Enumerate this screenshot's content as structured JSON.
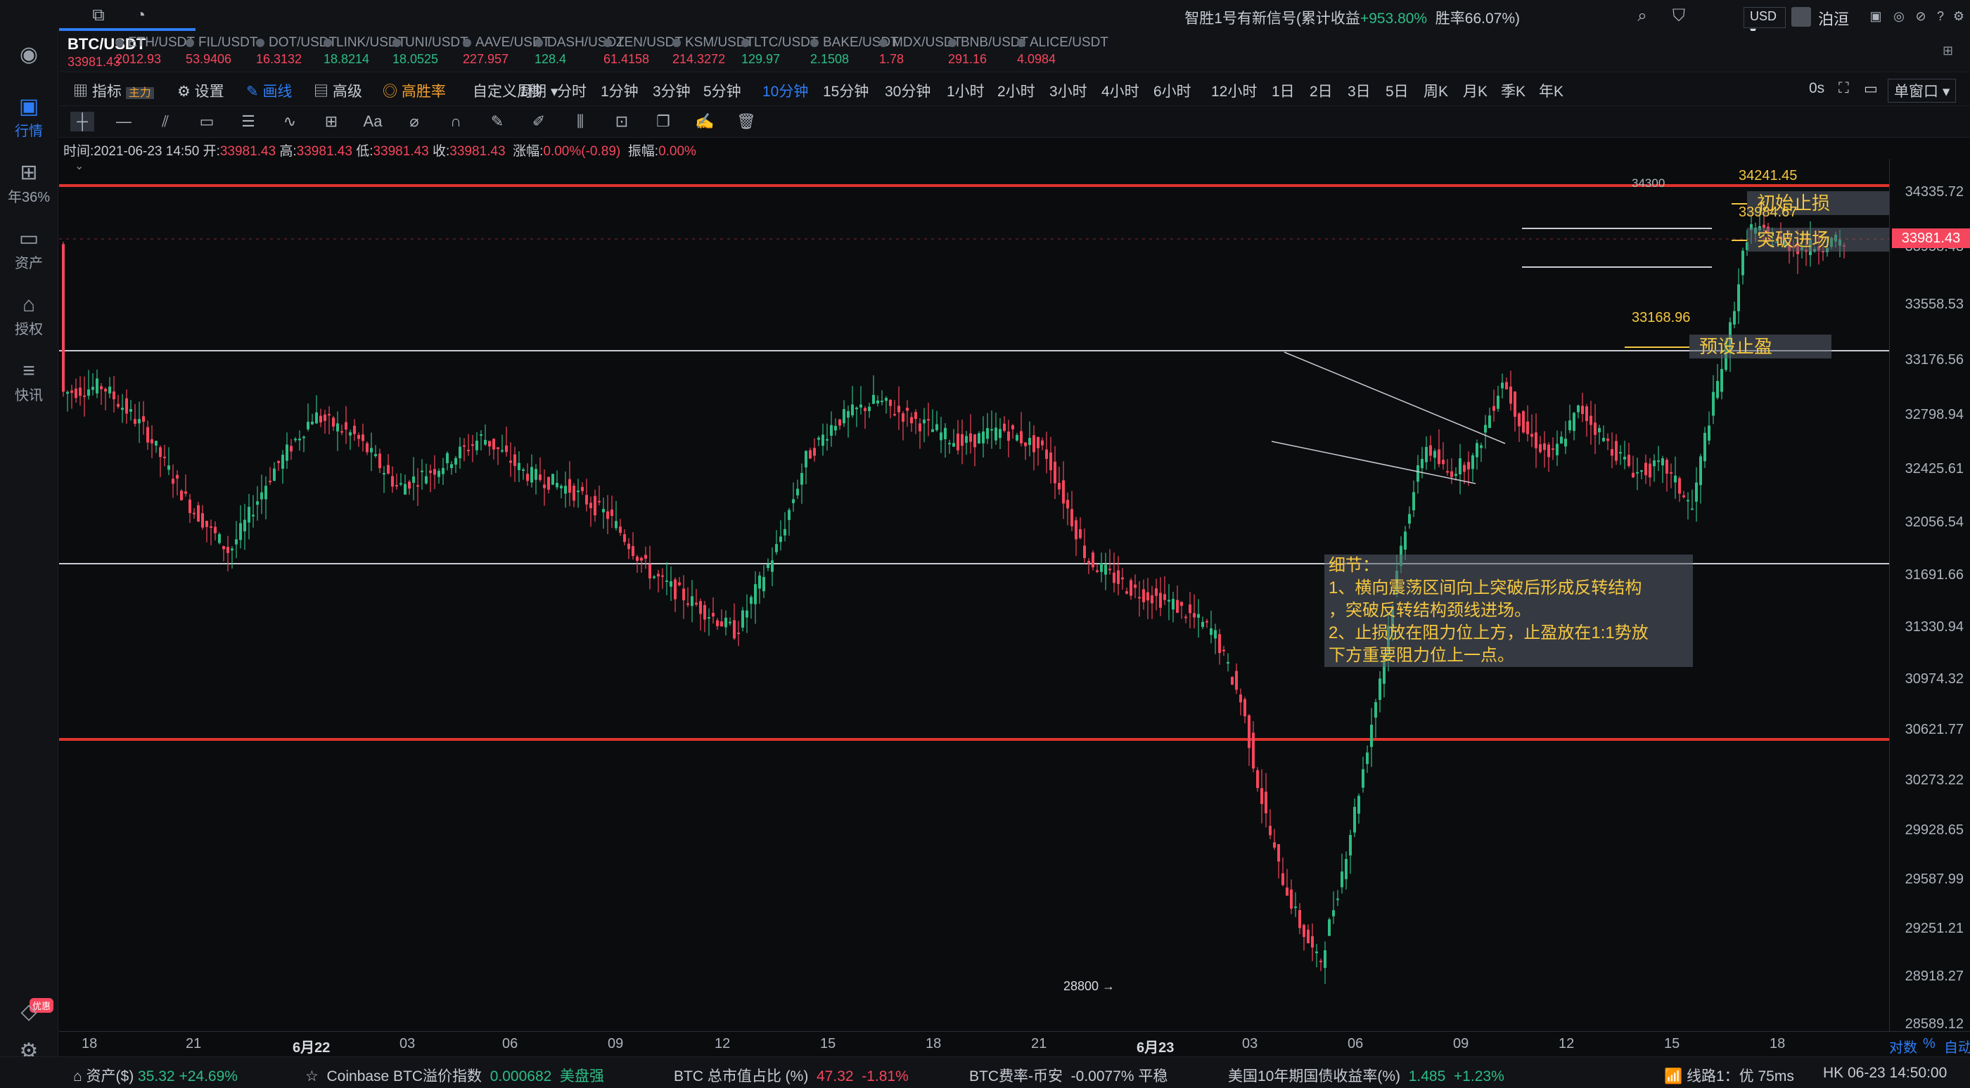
{
  "topbar": {
    "signal_prefix": "智胜1号有新信号(累计收益",
    "signal_gain": "+953.80%",
    "signal_winrate": "胜率66.07%)",
    "currency": "USD",
    "user": "泊洹",
    "icons": [
      "window-icon",
      "bell-icon",
      "search-icon",
      "shirt-icon",
      "layout-icon",
      "circle-icon",
      "ban-icon",
      "help-icon",
      "gear-icon"
    ]
  },
  "sidebar": {
    "items": [
      {
        "label": "行情",
        "icon": "B"
      },
      {
        "label": "年36%",
        "icon": "⊞"
      },
      {
        "label": "资产",
        "icon": "▭"
      },
      {
        "label": "授权",
        "icon": "⌂"
      },
      {
        "label": "快讯",
        "icon": "≡"
      }
    ],
    "badge": "优惠"
  },
  "active_pair": {
    "name": "BTC/USDT",
    "price": "33981.43"
  },
  "pairs": [
    {
      "name": "ETH/USDT",
      "price": "2012.93",
      "dir": "dn"
    },
    {
      "name": "FIL/USDT",
      "price": "53.9406",
      "dir": "dn"
    },
    {
      "name": "DOT/USDT",
      "price": "16.3132",
      "dir": "dn"
    },
    {
      "name": "LINK/USDT",
      "price": "18.8214",
      "dir": "up"
    },
    {
      "name": "UNI/USDT",
      "price": "18.0525",
      "dir": "up"
    },
    {
      "name": "AAVE/USDT",
      "price": "227.957",
      "dir": "dn"
    },
    {
      "name": "DASH/USDT",
      "price": "128.4",
      "dir": "up"
    },
    {
      "name": "ZEN/USDT",
      "price": "61.4158",
      "dir": "dn"
    },
    {
      "name": "KSM/USDT",
      "price": "214.3272",
      "dir": "dn"
    },
    {
      "name": "LTC/USDT",
      "price": "129.97",
      "dir": "up"
    },
    {
      "name": "BAKE/USDT",
      "price": "2.1508",
      "dir": "up"
    },
    {
      "name": "MDX/USDT",
      "price": "1.78",
      "dir": "dn"
    },
    {
      "name": "BNB/USDT",
      "price": "291.16",
      "dir": "dn"
    },
    {
      "name": "ALICE/USDT",
      "price": "4.0984",
      "dir": "dn"
    }
  ],
  "toolbar": {
    "indicator": "指标",
    "indicator_tag": "主力",
    "settings": "设置",
    "draw": "画线",
    "advanced": "高级",
    "winrate": "高胜率",
    "custom_period": "自定义周期",
    "periods": [
      "1秒",
      "分时",
      "1分钟",
      "3分钟",
      "5分钟",
      "10分钟",
      "15分钟",
      "30分钟",
      "1小时",
      "2小时",
      "3小时",
      "4小时",
      "6小时",
      "12小时",
      "1日",
      "2日",
      "3日",
      "5日",
      "周K",
      "月K",
      "季K",
      "年K"
    ],
    "active_period": "10分钟",
    "countdown": "0s",
    "window_mode": "单窗口"
  },
  "drawtools": [
    "crosshair-icon",
    "segment-icon",
    "parallel-icon",
    "rect-icon",
    "fib-icon",
    "wave-icon",
    "measure-icon",
    "text-icon",
    "eraser-icon",
    "magnet-icon",
    "brush-icon",
    "pen-icon",
    "candle-icon",
    "lock-icon",
    "copy-icon",
    "edit-icon",
    "trash-icon"
  ],
  "info": {
    "time_label": "时间:",
    "time": "2021-06-23 14:50",
    "open_label": "开:",
    "open": "33981.43",
    "high_label": "高:",
    "high": "33981.43",
    "low_label": "低:",
    "low": "33981.43",
    "close_label": "收:",
    "close": "33981.43",
    "change_label": "涨幅:",
    "change": "0.00%(-0.89)",
    "amp_label": "振幅:",
    "amp": "0.00%"
  },
  "chart_data": {
    "type": "candlestick",
    "ylim": [
      28400,
      34600
    ],
    "y_ticks": [
      "34335.72",
      "33958.43",
      "33558.53",
      "33176.56",
      "32798.94",
      "32425.61",
      "32056.54",
      "31691.66",
      "31330.94",
      "30974.32",
      "30621.77",
      "30273.22",
      "29928.65",
      "29587.99",
      "29251.21",
      "28918.27",
      "28589.12"
    ],
    "x_ticks": [
      "18",
      "21",
      "6月22",
      "03",
      "06",
      "09",
      "12",
      "15",
      "18",
      "21",
      "6月23",
      "03",
      "06",
      "09",
      "12",
      "15",
      "18"
    ],
    "last_price": "33981.43",
    "low_label": "28800",
    "high_label": "34300",
    "lines": [
      {
        "label": "初始止损",
        "price": 34241.45,
        "price_text": "34241.45"
      },
      {
        "label": "突破进场",
        "price": 33984.67,
        "price_text": "33984.67"
      },
      {
        "label": "预设止盈",
        "price": 33168.96,
        "price_text": "33168.96"
      }
    ],
    "note": {
      "title": "细节：",
      "lines": [
        "1、横向震荡区间向上突破后形成反转结构",
        "，突破反转结构颈线进场。",
        "2、止损放在阻力位上方，止盈放在1:1势放",
        "下方重要阻力位上一点。"
      ]
    },
    "axis_right": [
      "对数",
      "%",
      "自动"
    ]
  },
  "statusbar": {
    "assets_label": "资产($)",
    "assets": "35.32",
    "assets_chg": "+24.69%",
    "coinbase_label": "Coinbase BTC溢价指数",
    "coinbase": "0.000682",
    "coinbase_tag": "美盘强",
    "dom_label": "BTC 总市值占比 (%)",
    "dom": "47.32",
    "dom_chg": "-1.81%",
    "fee_label": "BTC费率-币安",
    "fee": "-0.0077%",
    "fee_tag": "平稳",
    "bond_label": "美国10年期国债收益率(%)",
    "bond": "1.485",
    "bond_chg": "+1.23%",
    "line": "线路1：优 75ms",
    "clock": "HK 06-23 14:50:00"
  }
}
